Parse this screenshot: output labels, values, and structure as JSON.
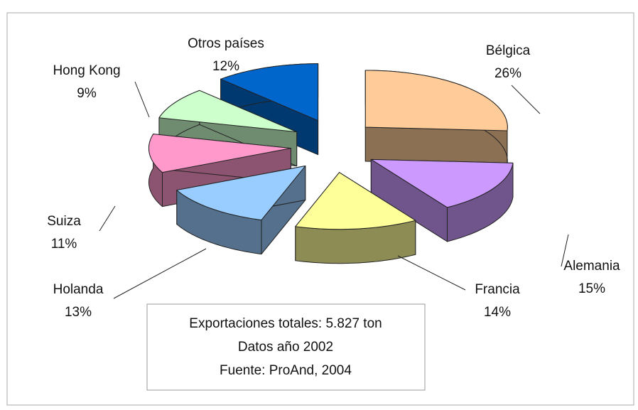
{
  "chart_data": {
    "type": "pie3d",
    "categories": [
      "Bélgica",
      "Alemania",
      "Francia",
      "Holanda",
      "Suiza",
      "Hong Kong",
      "Otros países"
    ],
    "values": [
      26,
      15,
      14,
      13,
      11,
      9,
      12
    ],
    "value_labels": [
      "26%",
      "15%",
      "14%",
      "13%",
      "11%",
      "9%",
      "12%"
    ],
    "colors": [
      "#ffcc99",
      "#cc99ff",
      "#ffff99",
      "#99ccff",
      "#ff99cc",
      "#ccffcc",
      "#0066cc"
    ],
    "annotations": [
      "Exportaciones totales: 5.827 ton",
      "Datos año 2002",
      "Fuente: ProAnd, 2004"
    ]
  }
}
